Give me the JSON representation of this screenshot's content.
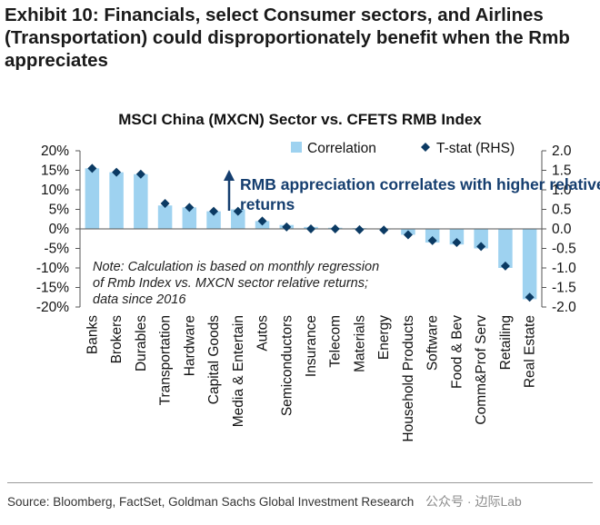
{
  "exhibit_title": "Exhibit 10: Financials, select Consumer sectors, and Airlines (Transportation) could disproportionately benefit when the Rmb appreciates",
  "source": "Source: Bloomberg, FactSet, Goldman Sachs Global Investment Research",
  "watermark": "公众号 · 边际Lab",
  "colors": {
    "bar": "#9ed2f0",
    "marker": "#0b3a63",
    "annotation": "#153e6f",
    "axis": "#555555"
  },
  "chart_data": {
    "type": "bar",
    "title": "MSCI China (MXCN) Sector vs. CFETS RMB Index",
    "categories": [
      "Banks",
      "Brokers",
      "Durables",
      "Transportation",
      "Hardware",
      "Capital Goods",
      "Media & Entertain",
      "Autos",
      "Semiconductors",
      "Insurance",
      "Telecom",
      "Materials",
      "Energy",
      "Household Products",
      "Software",
      "Food & Bev",
      "Comm&Prof Serv",
      "Retailing",
      "Real Estate"
    ],
    "series": [
      {
        "name": "Correlation",
        "kind": "bar",
        "axis": "left",
        "values": [
          15.5,
          14.5,
          14.0,
          6.0,
          5.5,
          4.5,
          5.0,
          2.0,
          1.0,
          0.5,
          0.3,
          0.2,
          0.0,
          -1.5,
          -3.5,
          -4.0,
          -5.0,
          -10.0,
          -18.0
        ]
      },
      {
        "name": "T-stat (RHS)",
        "kind": "marker",
        "axis": "right",
        "values": [
          1.55,
          1.45,
          1.4,
          0.65,
          0.55,
          0.45,
          0.45,
          0.2,
          0.05,
          0.0,
          0.0,
          -0.02,
          -0.03,
          -0.15,
          -0.3,
          -0.35,
          -0.45,
          -0.95,
          -1.75
        ]
      }
    ],
    "y_left": {
      "min": -20,
      "max": 20,
      "ticks": [
        "20%",
        "15%",
        "10%",
        "5%",
        "0%",
        "-5%",
        "-10%",
        "-15%",
        "-20%"
      ]
    },
    "y_right": {
      "min": -2.0,
      "max": 2.0,
      "ticks": [
        "2.0",
        "1.5",
        "1.0",
        "0.5",
        "0.0",
        "-0.5",
        "-1.0",
        "-1.5",
        "-2.0"
      ]
    },
    "legend": [
      "Correlation",
      "T-stat (RHS)"
    ],
    "legend_position": "top-right",
    "annotation_arrow": "RMB appreciation correlates with higher relative returns",
    "note": [
      "Note: Calculation is based on monthly regression",
      "of Rmb Index vs. MXCN sector relative returns;",
      "data since 2016"
    ]
  }
}
